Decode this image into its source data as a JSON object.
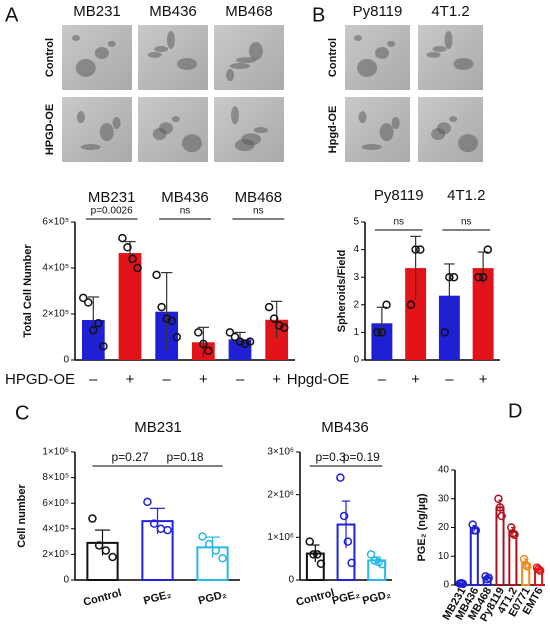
{
  "panel_labels": [
    "A",
    "B",
    "C",
    "D"
  ],
  "image_panels": {
    "A": {
      "columns": [
        "MB231",
        "MB436",
        "MB468"
      ],
      "rows": [
        "Control",
        "HPGD-OE"
      ]
    },
    "B": {
      "columns": [
        "Py8119",
        "4T1.2"
      ],
      "rows": [
        "Control",
        "Hpgd-OE"
      ]
    }
  },
  "chart_data": [
    {
      "type": "bar",
      "ylabel": "Total Cell Number",
      "xlabel": "HPGD-OE",
      "groups": [
        "MB231",
        "MB436",
        "MB468"
      ],
      "categories": [
        "–",
        "+",
        "–",
        "+",
        "–",
        "+"
      ],
      "values": [
        174000,
        465000,
        210000,
        77000,
        90000,
        175000
      ],
      "errors": [
        100000,
        50000,
        170000,
        65000,
        30000,
        80000
      ],
      "points": [
        [
          270000,
          250000,
          130000,
          160000,
          60000
        ],
        [
          530000,
          490000,
          440000,
          400000
        ],
        [
          370000,
          230000,
          180000,
          170000,
          100000
        ],
        [
          120000,
          70000,
          40000
        ],
        [
          120000,
          100000,
          80000,
          70000,
          80000
        ],
        [
          230000,
          180000,
          150000,
          140000
        ]
      ],
      "colors": [
        "#1f1fd6",
        "#e3131a",
        "#1f1fd6",
        "#e3131a",
        "#1f1fd6",
        "#e3131a"
      ],
      "annotations": [
        "p=0.0026",
        "ns",
        "ns"
      ],
      "ylim": [
        0,
        600000
      ],
      "yticks": [
        0,
        {
          "value": 200000,
          "label": "2×10⁵"
        },
        {
          "value": 400000,
          "label": "4×10⁵"
        },
        {
          "value": 600000,
          "label": "6×10⁵"
        }
      ]
    },
    {
      "type": "bar",
      "ylabel": "Spheroids/Field",
      "xlabel": "Hpgd-OE",
      "groups": [
        "Py8119",
        "4T1.2"
      ],
      "categories": [
        "–",
        "+",
        "–",
        "+"
      ],
      "values": [
        1.33,
        3.33,
        2.33,
        3.33
      ],
      "errors": [
        0.58,
        1.15,
        1.15,
        0.58
      ],
      "points": [
        [
          1,
          1,
          2
        ],
        [
          2,
          4,
          4
        ],
        [
          1,
          3,
          3
        ],
        [
          3,
          3,
          4
        ]
      ],
      "colors": [
        "#1f1fd6",
        "#e3131a",
        "#1f1fd6",
        "#e3131a"
      ],
      "annotations": [
        "ns",
        "ns"
      ],
      "ylim": [
        0,
        5
      ],
      "yticks": [
        0,
        1,
        2,
        3,
        4,
        5
      ]
    },
    {
      "type": "bar",
      "title": "MB231",
      "ylabel": "Cell number",
      "categories": [
        "Control",
        "PGE₂",
        "PGD₂"
      ],
      "values": [
        290000,
        460000,
        255000
      ],
      "errors": [
        100000,
        100000,
        80000
      ],
      "points": [
        [
          480000,
          270000,
          230000,
          180000
        ],
        [
          610000,
          440000,
          400000,
          390000
        ],
        [
          340000,
          280000,
          230000,
          170000
        ]
      ],
      "colors": [
        "#111111",
        "#2020e0",
        "#27b8e8"
      ],
      "annotations": [
        "p=0.27",
        "p=0.18"
      ],
      "ylim": [
        0,
        1000000
      ],
      "yticks": [
        0,
        {
          "value": 200000,
          "label": "2×10⁵"
        },
        {
          "value": 400000,
          "label": "4×10⁵"
        },
        {
          "value": 600000,
          "label": "6×10⁵"
        },
        {
          "value": 800000,
          "label": "8×10⁵"
        },
        {
          "value": 1000000,
          "label": "1×10⁶"
        }
      ]
    },
    {
      "type": "bar",
      "title": "MB436",
      "categories": [
        "Control",
        "PGE₂",
        "PGD₂"
      ],
      "values": [
        620000,
        1300000,
        460000
      ],
      "errors": [
        200000,
        550000,
        80000
      ],
      "points": [
        [
          900000,
          600000,
          600000,
          380000
        ],
        [
          2400000,
          1500000,
          900000,
          400000
        ],
        [
          600000,
          450000,
          420000,
          370000
        ]
      ],
      "colors": [
        "#111111",
        "#2020e0",
        "#27b8e8"
      ],
      "annotations": [
        "p=0.3",
        "p=0.19"
      ],
      "ylim": [
        0,
        3000000
      ],
      "yticks": [
        0,
        {
          "value": 1000000,
          "label": "1×10⁶"
        },
        {
          "value": 2000000,
          "label": "2×10⁶"
        },
        {
          "value": 3000000,
          "label": "3×10⁶"
        }
      ]
    },
    {
      "type": "bar",
      "ylabel": "PGE₂ (ng/µg)",
      "categories": [
        "MB231",
        "MB436",
        "MB468",
        "Py8119",
        "4T1.2",
        "E0771",
        "EMT6"
      ],
      "values": [
        0.5,
        19.7,
        2.5,
        27,
        18.5,
        7.5,
        5.5
      ],
      "errors": [
        0.1,
        1,
        0.4,
        2.5,
        1.5,
        1.5,
        0.4
      ],
      "points": [
        [
          0.5,
          0.6,
          0.4
        ],
        [
          21,
          19,
          19
        ],
        [
          3,
          2,
          2.5
        ],
        [
          30,
          27,
          24
        ],
        [
          20,
          18,
          17.5
        ],
        [
          9,
          7,
          6.5
        ],
        [
          6,
          5.5,
          5
        ]
      ],
      "colors": [
        "#1f1fd6",
        "#1f1fd6",
        "#1f1fd6",
        "#b01020",
        "#b01020",
        "#f08a1a",
        "#e3131a"
      ],
      "ylim": [
        0,
        40
      ],
      "yticks": [
        0,
        10,
        20,
        30,
        40
      ]
    }
  ]
}
